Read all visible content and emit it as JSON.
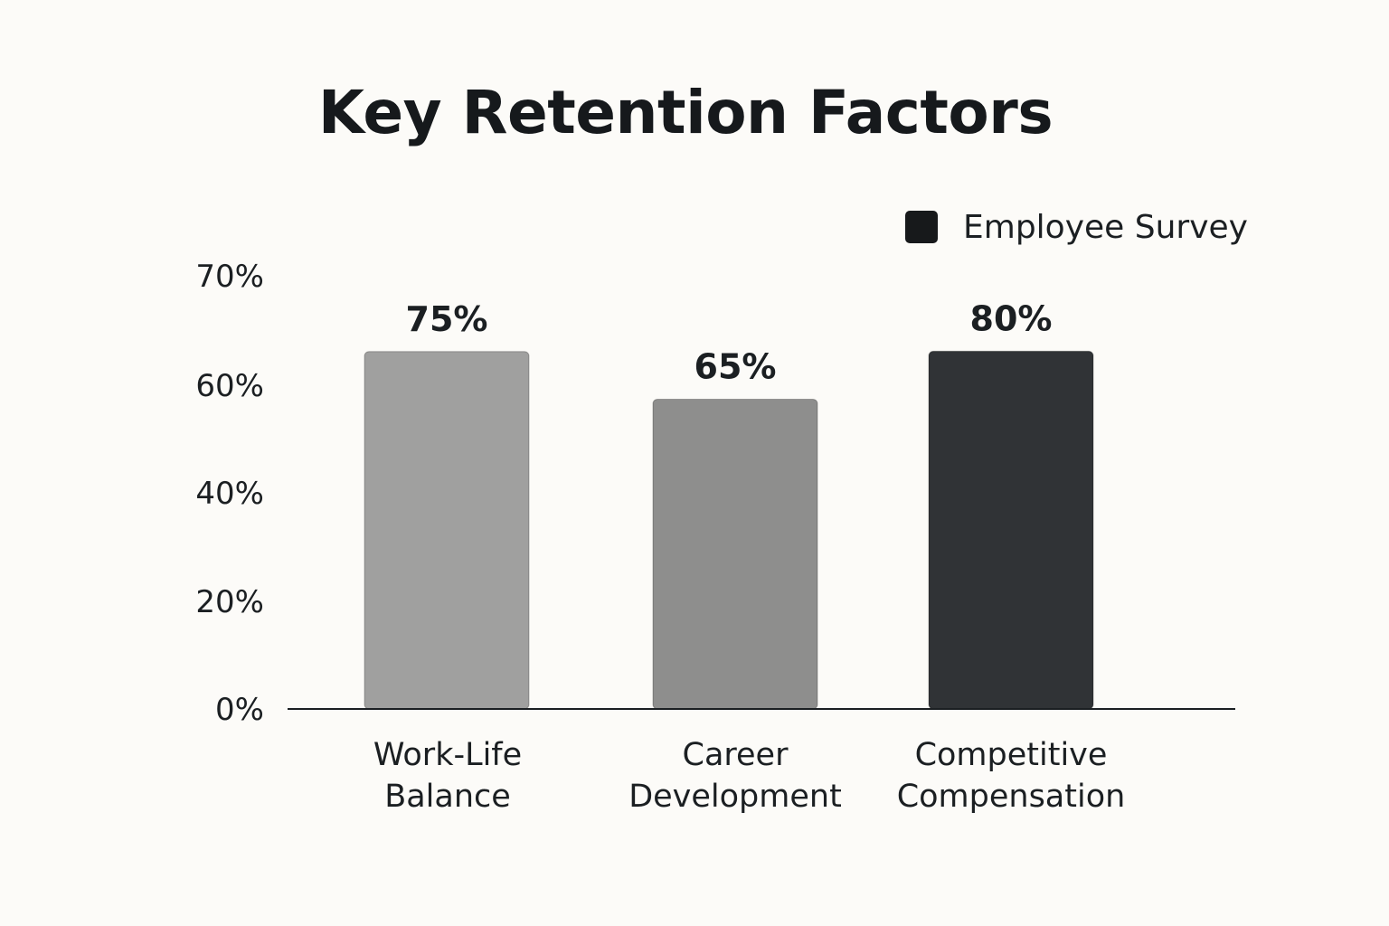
{
  "chart_data": {
    "type": "bar",
    "title": "Key Retention Factors",
    "xlabel": "",
    "ylabel": "",
    "categories": [
      [
        "Work-Life",
        "Balance"
      ],
      [
        "Career",
        "Development"
      ],
      [
        "Competitive",
        "Compensation"
      ]
    ],
    "series": [
      {
        "name": "Employee Survey",
        "values": [
          75,
          65,
          80
        ],
        "value_labels": [
          "75%",
          "65%",
          "80%"
        ],
        "bar_colors": [
          "#a0a09f",
          "#8e8e8d",
          "#303336"
        ]
      }
    ],
    "yticks": [
      0,
      20,
      40,
      60,
      70
    ],
    "ytick_labels": [
      "0%",
      "20%",
      "40%",
      "60%",
      "70%"
    ],
    "grid": true,
    "legend_position": "top-right",
    "legend_color": "#17191b"
  }
}
